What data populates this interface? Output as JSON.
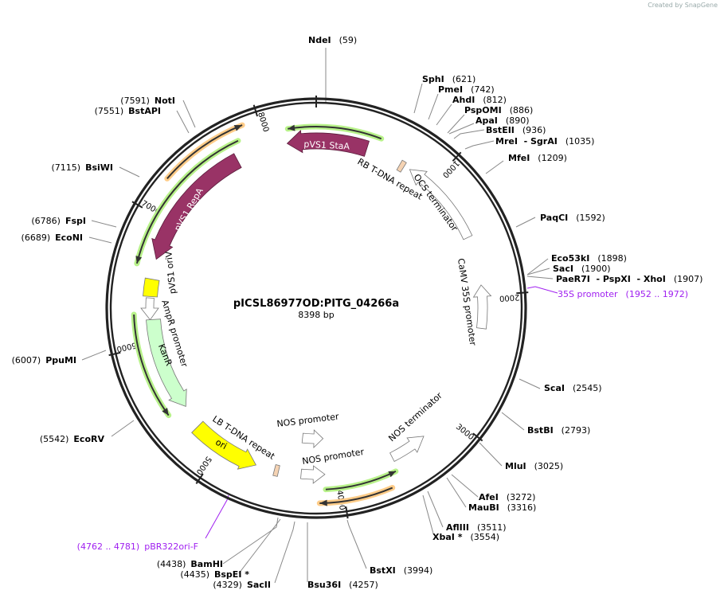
{
  "watermark": "Created by SnapGene",
  "plasmid": {
    "name": "pICSL86977OD:PITG_04266a",
    "length": "8398 bp"
  },
  "ticks": [
    "1000",
    "2000",
    "3000",
    "4000",
    "5000",
    "6000",
    "7000",
    "8000"
  ],
  "features": [
    {
      "name": "pVS1 StaA",
      "color": "#993366"
    },
    {
      "name": "pVS1 RepA",
      "color": "#993366"
    },
    {
      "name": "pVS1 oriV",
      "color": "#ffff00"
    },
    {
      "name": "AmpR promoter",
      "color": "#ffffff"
    },
    {
      "name": "KanR",
      "color": "#ccffcc"
    },
    {
      "name": "ori",
      "color": "#ffff00"
    },
    {
      "name": "LB T-DNA repeat",
      "color": "#f5d3b3"
    },
    {
      "name": "NOS promoter",
      "color": "#ffffff"
    },
    {
      "name": "NOS promoter",
      "color": "#ffffff"
    },
    {
      "name": "NOS terminator",
      "color": "#ffffff"
    },
    {
      "name": "CaMV 35S promoter",
      "color": "#ffffff"
    },
    {
      "name": "OCS terminator",
      "color": "#ffffff"
    },
    {
      "name": "RB T-DNA repeat",
      "color": "#f5d3b3"
    }
  ],
  "enzymes": [
    {
      "name": "NdeI",
      "pos": "(59)"
    },
    {
      "name": "SphI",
      "pos": "(621)"
    },
    {
      "name": "PmeI",
      "pos": "(742)"
    },
    {
      "name": "AhdI",
      "pos": "(812)"
    },
    {
      "name": "PspOMI",
      "pos": "(886)"
    },
    {
      "name": "ApaI",
      "pos": "(890)"
    },
    {
      "name": "BstEII",
      "pos": "(936)"
    },
    {
      "name": "MreI  - SgrAI",
      "pos": "(1035)"
    },
    {
      "name": "MfeI",
      "pos": "(1209)"
    },
    {
      "name": "PaqCI",
      "pos": "(1592)"
    },
    {
      "name": "Eco53kI",
      "pos": "(1898)"
    },
    {
      "name": "SacI",
      "pos": "(1900)"
    },
    {
      "name": "PaeR7I  - PspXI  - XhoI",
      "pos": "(1907)"
    },
    {
      "name": "ScaI",
      "pos": "(2545)"
    },
    {
      "name": "BstBI",
      "pos": "(2793)"
    },
    {
      "name": "MluI",
      "pos": "(3025)"
    },
    {
      "name": "AfeI",
      "pos": "(3272)"
    },
    {
      "name": "MauBI",
      "pos": "(3316)"
    },
    {
      "name": "AflIII",
      "pos": "(3511)"
    },
    {
      "name": "XbaI *",
      "pos": "(3554)"
    },
    {
      "name": "BstXI",
      "pos": "(3994)"
    },
    {
      "name": "Bsu36I",
      "pos": "(4257)"
    },
    {
      "name": "SacII",
      "pos": "(4329)"
    },
    {
      "name": "BspEI *",
      "pos": "(4435)"
    },
    {
      "name": "BamHI",
      "pos": "(4438)"
    },
    {
      "name": "EcoRV",
      "pos": "(5542)"
    },
    {
      "name": "PpuMI",
      "pos": "(6007)"
    },
    {
      "name": "EcoNI",
      "pos": "(6689)"
    },
    {
      "name": "FspI",
      "pos": "(6786)"
    },
    {
      "name": "BsiWI",
      "pos": "(7115)"
    },
    {
      "name": "BstAPI",
      "pos": "(7551)"
    },
    {
      "name": "NotI",
      "pos": "(7591)"
    }
  ],
  "primers": [
    {
      "name": "35S promoter",
      "pos": "(1952 .. 1972)",
      "color": "#a020f0"
    },
    {
      "name": "pBR322ori-F",
      "pos": "(4762 .. 4781)",
      "color": "#a020f0"
    }
  ]
}
